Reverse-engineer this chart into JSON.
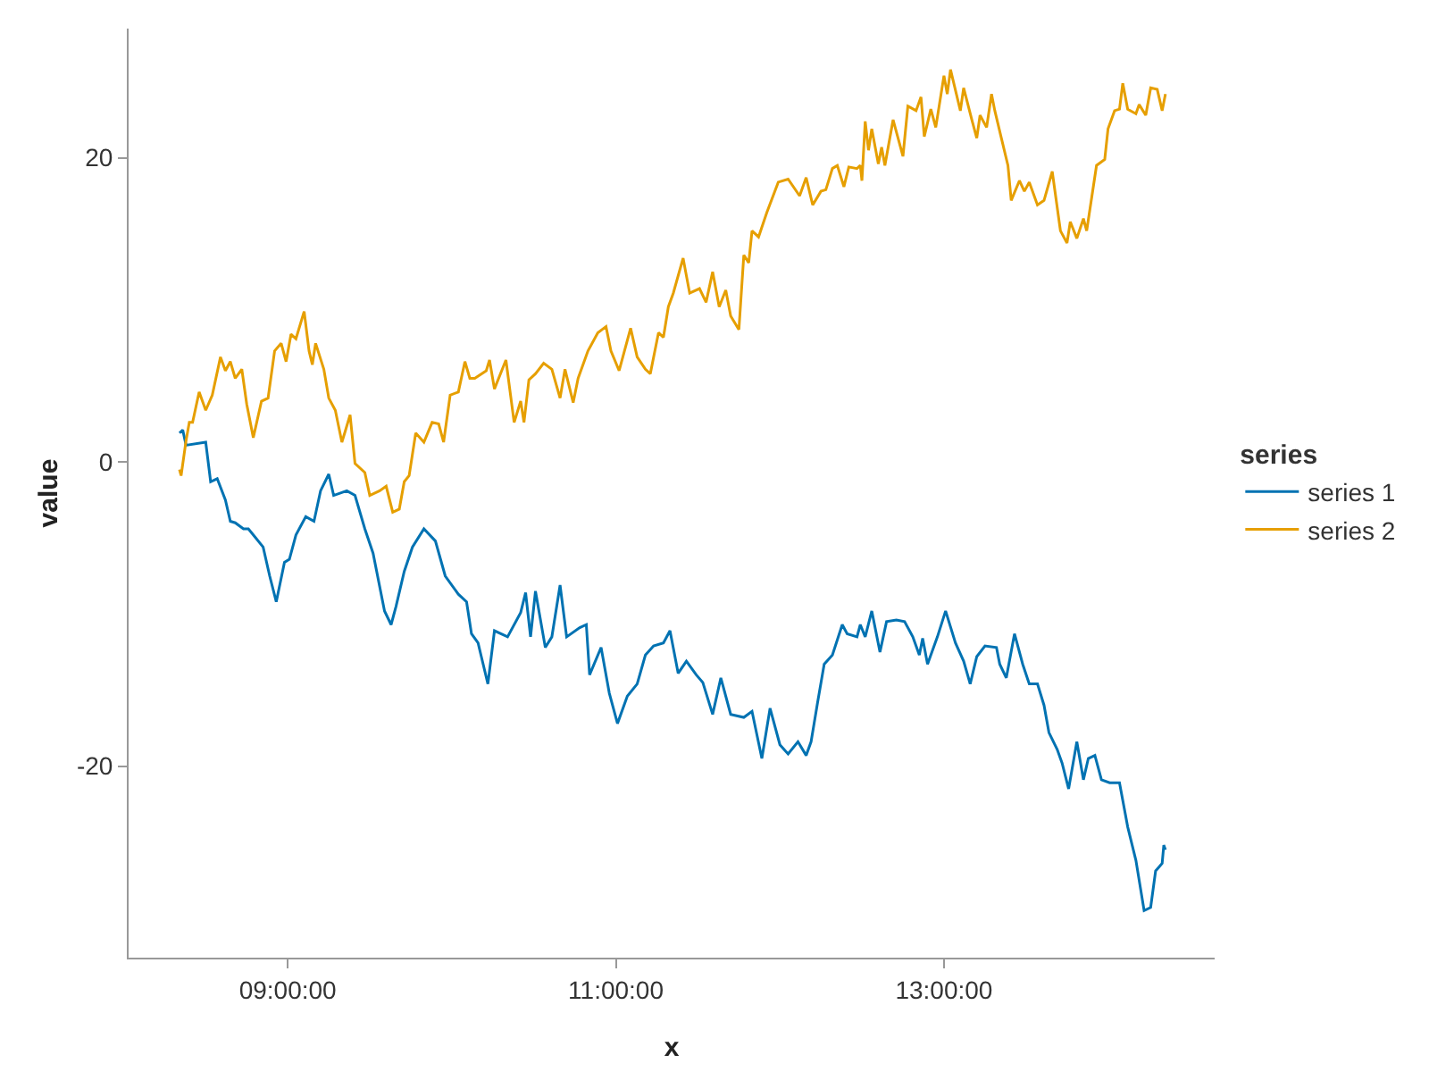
{
  "chart_data": {
    "type": "line",
    "xlabel": "x",
    "ylabel": "value",
    "legend_title": "series",
    "legend": "right",
    "grid": false,
    "line_style": "solid",
    "marker": "none",
    "xlim": [
      8.03,
      14.65
    ],
    "xticks": [
      {
        "value": 9,
        "label": "09:00:00"
      },
      {
        "value": 11,
        "label": "11:00:00"
      },
      {
        "value": 13,
        "label": "13:00:00"
      }
    ],
    "ylim": [
      -32.6,
      28.5
    ],
    "yticks": [
      -20,
      0,
      20
    ],
    "series": [
      {
        "name": "series 1",
        "color": "#0072b2",
        "x": [
          8.34,
          8.36,
          8.38,
          8.5,
          8.53,
          8.57,
          8.62,
          8.65,
          8.68,
          8.73,
          8.76,
          8.79,
          8.85,
          8.89,
          8.93,
          8.98,
          9.01,
          9.05,
          9.11,
          9.16,
          9.2,
          9.25,
          9.28,
          9.36,
          9.41,
          9.47,
          9.52,
          9.59,
          9.63,
          9.66,
          9.71,
          9.76,
          9.83,
          9.9,
          9.96,
          10.04,
          10.09,
          10.12,
          10.16,
          10.18,
          10.22,
          10.26,
          10.34,
          10.42,
          10.45,
          10.48,
          10.51,
          10.57,
          10.61,
          10.66,
          10.7,
          10.78,
          10.82,
          10.84,
          10.91,
          10.96,
          11.01,
          11.07,
          11.13,
          11.18,
          11.23,
          11.29,
          11.33,
          11.38,
          11.43,
          11.49,
          11.53,
          11.59,
          11.64,
          11.7,
          11.78,
          11.83,
          11.89,
          11.94,
          12.0,
          12.05,
          12.11,
          12.16,
          12.19,
          12.23,
          12.27,
          12.32,
          12.38,
          12.41,
          12.47,
          12.49,
          12.52,
          12.56,
          12.61,
          12.65,
          12.71,
          12.76,
          12.81,
          12.85,
          12.87,
          12.9,
          12.96,
          13.01,
          13.07,
          13.12,
          13.16,
          13.2,
          13.25,
          13.32,
          13.34,
          13.38,
          13.43,
          13.48,
          13.52,
          13.57,
          13.61,
          13.64,
          13.69,
          13.72,
          13.76,
          13.81,
          13.85,
          13.88,
          13.92,
          13.96,
          14.01,
          14.07,
          14.12,
          14.17,
          14.22,
          14.26,
          14.29,
          14.33,
          14.34,
          14.35
        ],
        "values": [
          1.9,
          2.1,
          1.1,
          1.3,
          -1.3,
          -1.1,
          -2.5,
          -3.9,
          -4.0,
          -4.4,
          -4.4,
          -4.8,
          -5.6,
          -7.5,
          -9.2,
          -6.6,
          -6.4,
          -4.8,
          -3.6,
          -3.9,
          -1.9,
          -0.8,
          -2.2,
          -1.9,
          -2.2,
          -4.4,
          -6.0,
          -9.8,
          -10.7,
          -9.5,
          -7.2,
          -5.6,
          -4.4,
          -5.2,
          -7.5,
          -8.7,
          -9.2,
          -11.3,
          -11.9,
          -12.8,
          -14.6,
          -11.1,
          -11.5,
          -9.9,
          -8.6,
          -11.5,
          -8.5,
          -12.2,
          -11.5,
          -8.1,
          -11.5,
          -10.9,
          -10.7,
          -14.0,
          -12.2,
          -15.2,
          -17.2,
          -15.4,
          -14.6,
          -12.7,
          -12.1,
          -11.9,
          -11.1,
          -13.9,
          -13.1,
          -14.0,
          -14.5,
          -16.6,
          -14.2,
          -16.6,
          -16.8,
          -16.4,
          -19.5,
          -16.2,
          -18.6,
          -19.2,
          -18.4,
          -19.3,
          -18.4,
          -15.8,
          -13.3,
          -12.7,
          -10.7,
          -11.3,
          -11.5,
          -10.7,
          -11.5,
          -9.8,
          -12.5,
          -10.5,
          -10.4,
          -10.5,
          -11.5,
          -12.7,
          -11.6,
          -13.3,
          -11.5,
          -9.8,
          -11.9,
          -13.1,
          -14.6,
          -12.8,
          -12.1,
          -12.2,
          -13.3,
          -14.2,
          -11.3,
          -13.3,
          -14.6,
          -14.6,
          -16.0,
          -17.8,
          -18.9,
          -19.8,
          -21.5,
          -18.4,
          -20.9,
          -19.5,
          -19.3,
          -20.9,
          -21.1,
          -21.1,
          -24.0,
          -26.2,
          -29.5,
          -29.3,
          -26.9,
          -26.4,
          -25.2,
          -25.5
        ]
      },
      {
        "name": "series 2",
        "color": "#e69f00",
        "x": [
          8.34,
          8.35,
          8.38,
          8.4,
          8.42,
          8.46,
          8.5,
          8.54,
          8.59,
          8.62,
          8.65,
          8.68,
          8.72,
          8.75,
          8.79,
          8.84,
          8.88,
          8.92,
          8.96,
          8.99,
          9.02,
          9.05,
          9.1,
          9.13,
          9.15,
          9.17,
          9.22,
          9.25,
          9.29,
          9.33,
          9.35,
          9.38,
          9.41,
          9.47,
          9.5,
          9.56,
          9.6,
          9.64,
          9.68,
          9.71,
          9.74,
          9.78,
          9.83,
          9.88,
          9.92,
          9.95,
          9.99,
          10.04,
          10.08,
          10.11,
          10.14,
          10.21,
          10.23,
          10.26,
          10.33,
          10.38,
          10.42,
          10.44,
          10.47,
          10.51,
          10.56,
          10.61,
          10.66,
          10.69,
          10.74,
          10.77,
          10.83,
          10.89,
          10.94,
          10.97,
          11.02,
          11.09,
          11.13,
          11.18,
          11.21,
          11.26,
          11.29,
          11.32,
          11.35,
          11.41,
          11.45,
          11.51,
          11.55,
          11.59,
          11.63,
          11.67,
          11.7,
          11.75,
          11.78,
          11.81,
          11.83,
          11.87,
          11.92,
          11.99,
          12.05,
          12.12,
          12.16,
          12.2,
          12.25,
          12.28,
          12.32,
          12.35,
          12.39,
          12.42,
          12.47,
          12.49,
          12.5,
          12.52,
          12.54,
          12.56,
          12.6,
          12.62,
          12.64,
          12.69,
          12.75,
          12.78,
          12.83,
          12.86,
          12.88,
          12.92,
          12.95,
          13.0,
          13.02,
          13.04,
          13.1,
          13.12,
          13.17,
          13.2,
          13.22,
          13.26,
          13.29,
          13.31,
          13.35,
          13.39,
          13.41,
          13.46,
          13.49,
          13.52,
          13.57,
          13.61,
          13.66,
          13.71,
          13.75,
          13.77,
          13.81,
          13.85,
          13.87,
          13.93,
          13.98,
          14.0,
          14.04,
          14.07,
          14.09,
          14.12,
          14.17,
          14.19,
          14.23,
          14.26,
          14.3,
          14.33,
          14.35
        ],
        "values": [
          -0.5,
          -0.9,
          1.4,
          2.6,
          2.6,
          4.6,
          3.4,
          4.4,
          6.9,
          6.0,
          6.6,
          5.5,
          6.1,
          3.8,
          1.6,
          4.0,
          4.2,
          7.3,
          7.8,
          6.6,
          8.4,
          8.1,
          9.9,
          7.3,
          6.4,
          7.8,
          6.1,
          4.2,
          3.4,
          1.3,
          2.0,
          3.1,
          -0.1,
          -0.7,
          -2.2,
          -1.9,
          -1.6,
          -3.3,
          -3.1,
          -1.3,
          -0.9,
          1.9,
          1.3,
          2.6,
          2.5,
          1.3,
          4.4,
          4.6,
          6.6,
          5.5,
          5.5,
          6.0,
          6.7,
          4.8,
          6.7,
          2.6,
          4.0,
          2.6,
          5.4,
          5.8,
          6.5,
          6.1,
          4.2,
          6.1,
          3.9,
          5.5,
          7.3,
          8.5,
          8.9,
          7.3,
          6.0,
          8.8,
          6.9,
          6.1,
          5.8,
          8.5,
          8.2,
          10.2,
          11.1,
          13.4,
          11.1,
          11.4,
          10.5,
          12.5,
          10.2,
          11.3,
          9.6,
          8.7,
          13.6,
          13.1,
          15.2,
          14.8,
          16.4,
          18.4,
          18.6,
          17.5,
          18.7,
          16.9,
          17.8,
          17.9,
          19.3,
          19.5,
          18.1,
          19.4,
          19.3,
          19.5,
          18.5,
          22.4,
          20.5,
          21.9,
          19.6,
          20.7,
          19.5,
          22.5,
          20.1,
          23.4,
          23.1,
          24.0,
          21.4,
          23.2,
          22.0,
          25.4,
          24.2,
          25.8,
          23.1,
          24.6,
          22.5,
          21.3,
          22.8,
          22.0,
          24.2,
          23.1,
          21.3,
          19.5,
          17.2,
          18.5,
          17.8,
          18.4,
          16.9,
          17.2,
          19.1,
          15.2,
          14.4,
          15.8,
          14.7,
          16.0,
          15.2,
          19.5,
          19.9,
          21.9,
          23.1,
          23.2,
          24.9,
          23.2,
          22.9,
          23.5,
          22.8,
          24.6,
          24.5,
          23.1,
          24.2
        ]
      }
    ]
  }
}
